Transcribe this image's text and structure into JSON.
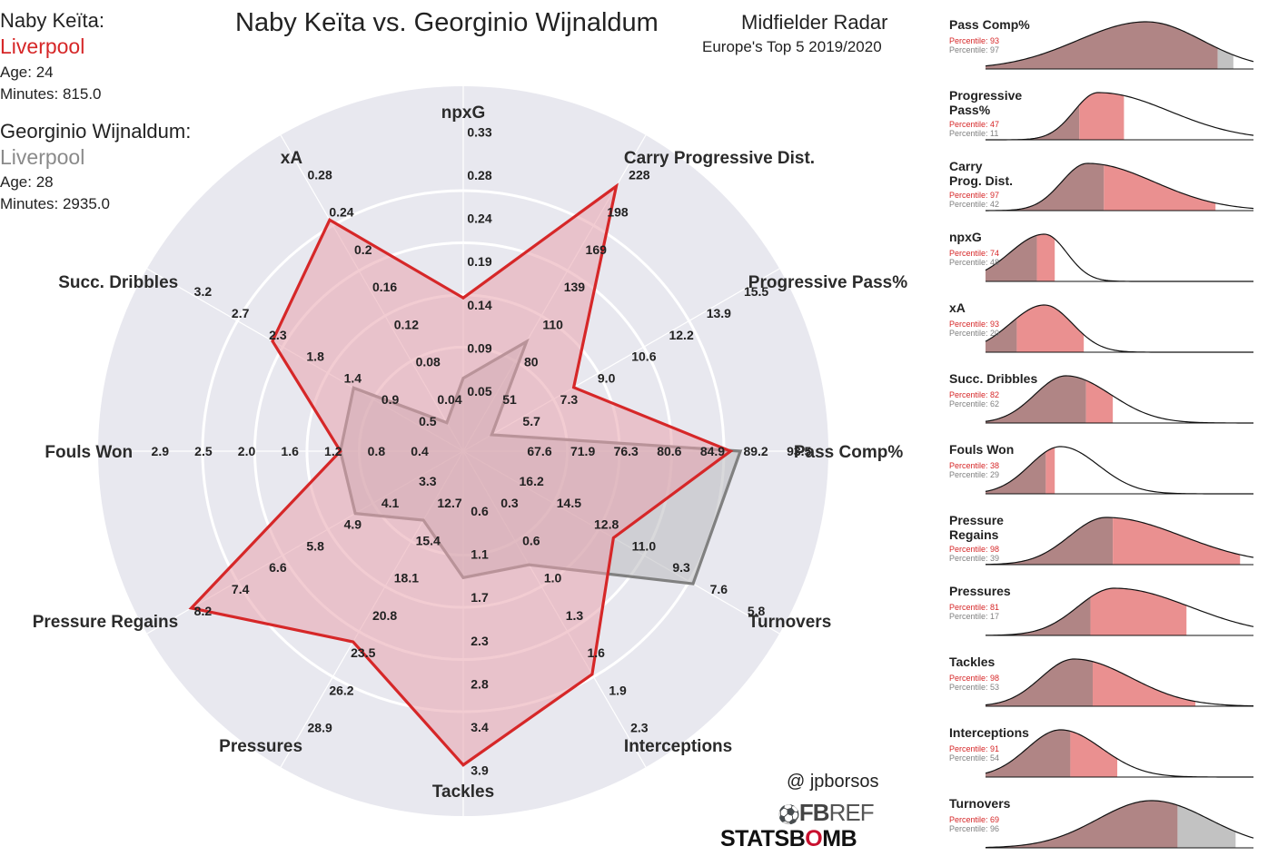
{
  "title": "Naby Keïta vs. Georginio Wijnaldum",
  "subtitle": {
    "line1": "Midfielder Radar",
    "line2": "Europe's Top 5 2019/2020"
  },
  "players": [
    {
      "name": "Naby Keïta:",
      "team": "Liverpool",
      "age": "Age: 24",
      "minutes": "Minutes: 815.0",
      "color": "#d62728"
    },
    {
      "name": "Georginio Wijnaldum:",
      "team": "Liverpool",
      "age": "Age: 28",
      "minutes": "Minutes: 2935.0",
      "color": "#808080"
    }
  ],
  "credit": "@ jpborsos",
  "logos": {
    "fbref_bold": "FB",
    "fbref_light": "REF",
    "statsbomb_a": "STATSB",
    "statsbomb_o": "O",
    "statsbomb_b": "MB"
  },
  "colors": {
    "background_disc": "#e8e8ef",
    "player1": "#d62728",
    "player2": "#808080",
    "player1_fill": "#e8a3ad",
    "player2_fill": "#b9b9bd",
    "dist_dark": "#b08585",
    "dist_red": "#ea9090",
    "dist_grey": "#c2c2c2"
  },
  "chart_data": {
    "type": "radar",
    "categories": [
      "npxG",
      "Carry Progressive Dist.",
      "Progressive Pass%",
      "Pass Comp%",
      "Turnovers",
      "Interceptions",
      "Tackles",
      "Pressures",
      "Pressure Regains",
      "Fouls Won",
      "Succ. Dribbles",
      "xA"
    ],
    "tick_labels": [
      [
        "0.05",
        "0.09",
        "0.14",
        "0.19",
        "0.24",
        "0.28",
        "0.33"
      ],
      [
        "51",
        "80",
        "110",
        "139",
        "169",
        "198",
        "228"
      ],
      [
        "5.7",
        "7.3",
        "9.0",
        "10.6",
        "12.2",
        "13.9",
        "15.5"
      ],
      [
        "67.6",
        "71.9",
        "76.3",
        "80.6",
        "84.9",
        "89.2",
        "93.5"
      ],
      [
        "16.2",
        "14.5",
        "12.8",
        "11.0",
        "9.3",
        "7.6",
        "5.8"
      ],
      [
        "0.3",
        "0.6",
        "1.0",
        "1.3",
        "1.6",
        "1.9",
        "2.3"
      ],
      [
        "0.6",
        "1.1",
        "1.7",
        "2.3",
        "2.8",
        "3.4",
        "3.9"
      ],
      [
        "12.7",
        "15.4",
        "18.1",
        "20.8",
        "23.5",
        "26.2",
        "28.9"
      ],
      [
        "3.3",
        "4.1",
        "4.9",
        "5.8",
        "6.6",
        "7.4",
        "8.2"
      ],
      [
        "0.4",
        "0.8",
        "1.2",
        "1.6",
        "2.0",
        "2.5",
        "2.9"
      ],
      [
        "0.5",
        "0.9",
        "1.4",
        "1.8",
        "2.3",
        "2.7",
        "3.2"
      ],
      [
        "0.04",
        "0.08",
        "0.12",
        "0.16",
        "0.2",
        "0.24",
        "0.28"
      ]
    ],
    "ranges": [
      [
        0.05,
        0.33
      ],
      [
        51,
        228
      ],
      [
        5.7,
        15.5
      ],
      [
        67.6,
        93.5
      ],
      [
        16.2,
        5.8
      ],
      [
        0.3,
        2.3
      ],
      [
        0.6,
        3.9
      ],
      [
        12.7,
        28.9
      ],
      [
        3.3,
        8.2
      ],
      [
        0.4,
        2.9
      ],
      [
        0.5,
        3.2
      ],
      [
        0.04,
        0.28
      ]
    ],
    "series": [
      {
        "name": "Naby Keïta",
        "values": [
          0.17,
          223,
          9.0,
          89.2,
          11.0,
          1.9,
          3.9,
          23.5,
          8.2,
          1.2,
          2.3,
          0.24
        ]
      },
      {
        "name": "Georginio Wijnaldum",
        "values": [
          0.09,
          110,
          5.7,
          90.1,
          7.6,
          1.0,
          1.7,
          15.4,
          4.9,
          1.2,
          1.4,
          0.04
        ]
      }
    ],
    "distributions": [
      {
        "label": "Pass Comp%",
        "p1": "Percentile: 93",
        "p2": "Percentile: 97",
        "p1_value": 93,
        "p2_value": 97
      },
      {
        "label": "Progressive Pass%",
        "p1": "Percentile: 47",
        "p2": "Percentile: 11",
        "p1_value": 47,
        "p2_value": 11
      },
      {
        "label": "Carry Prog. Dist.",
        "p1": "Percentile: 97",
        "p2": "Percentile: 42",
        "p1_value": 97,
        "p2_value": 42
      },
      {
        "label": "npxG",
        "p1": "Percentile: 74",
        "p2": "Percentile: 48",
        "p1_value": 74,
        "p2_value": 48
      },
      {
        "label": "xA",
        "p1": "Percentile: 93",
        "p2": "Percentile: 20",
        "p1_value": 93,
        "p2_value": 20
      },
      {
        "label": "Succ. Dribbles",
        "p1": "Percentile: 82",
        "p2": "Percentile: 62",
        "p1_value": 82,
        "p2_value": 62
      },
      {
        "label": "Fouls Won",
        "p1": "Percentile: 38",
        "p2": "Percentile: 29",
        "p1_value": 38,
        "p2_value": 29
      },
      {
        "label": "Pressure Regains",
        "p1": "Percentile: 98",
        "p2": "Percentile: 39",
        "p1_value": 98,
        "p2_value": 39
      },
      {
        "label": "Pressures",
        "p1": "Percentile: 81",
        "p2": "Percentile: 17",
        "p1_value": 81,
        "p2_value": 17
      },
      {
        "label": "Tackles",
        "p1": "Percentile: 98",
        "p2": "Percentile: 53",
        "p1_value": 98,
        "p2_value": 53
      },
      {
        "label": "Interceptions",
        "p1": "Percentile: 91",
        "p2": "Percentile: 54",
        "p1_value": 91,
        "p2_value": 54
      },
      {
        "label": "Turnovers",
        "p1": "Percentile: 69",
        "p2": "Percentile: 96",
        "p1_value": 69,
        "p2_value": 96
      }
    ]
  }
}
